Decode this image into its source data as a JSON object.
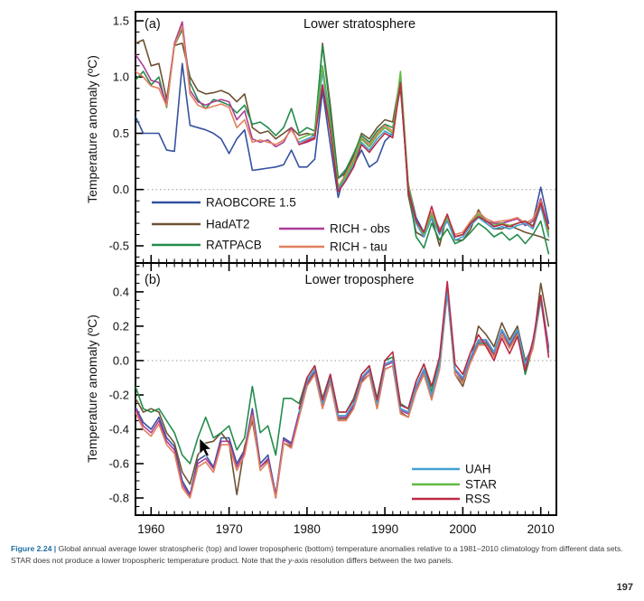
{
  "caption": {
    "label": "Figure 2.24 |",
    "body_pre": "Global annual average lower stratospheric (top) and lower tropospheric (bottom) temperature anomalies relative to a 1981–2010 climatology from different data sets. STAR does not produce a lower tropospheric temperature product. Note that the ",
    "italic": "y",
    "body_post": "-axis resolution differs between the two panels."
  },
  "page_number": "197",
  "chart_data": [
    {
      "type": "line",
      "panel_label": "(a)",
      "title": "Lower stratosphere",
      "ylabel": "Temperature anomaly (ºC)",
      "x_range": [
        1958,
        2012
      ],
      "ylim": [
        -0.653,
        1.58
      ],
      "ytick_values": [
        -0.5,
        0.0,
        0.5,
        1.0,
        1.5
      ],
      "y_minor_step": 0.1,
      "xticks": [
        1960,
        1970,
        1980,
        1990,
        2000,
        2010
      ],
      "x_minor_step": 1,
      "zero_line": true,
      "legend": {
        "columns": [
          [
            {
              "label": "RAOBCORE 1.5",
              "color": "#3552a0"
            },
            {
              "label": "HadAT2",
              "color": "#6e5232"
            },
            {
              "label": "RATPACB",
              "color": "#238c4c"
            }
          ],
          [
            {
              "label": "RICH - obs",
              "color": "#aa3e96"
            },
            {
              "label": "RICH - tau",
              "color": "#e2805e"
            }
          ]
        ]
      },
      "series": [
        {
          "name": "RAOBCORE 1.5",
          "color": "#3552a0",
          "start_year": 1958,
          "values": [
            0.65,
            0.5,
            0.5,
            0.5,
            0.35,
            0.34,
            1.12,
            0.57,
            0.55,
            0.53,
            0.5,
            0.45,
            0.32,
            0.45,
            0.53,
            0.17,
            0.18,
            0.19,
            0.2,
            0.22,
            0.35,
            0.2,
            0.2,
            0.27,
            0.88,
            0.4,
            -0.07,
            0.18,
            0.22,
            0.35,
            0.2,
            0.25,
            0.43,
            0.5,
            0.96,
            0.05,
            -0.25,
            -0.38,
            -0.2,
            -0.35,
            -0.28,
            -0.42,
            -0.4,
            -0.3,
            -0.22,
            -0.28,
            -0.32,
            -0.3,
            -0.28,
            -0.25,
            -0.32,
            -0.28,
            0.02,
            -0.3
          ]
        },
        {
          "name": "HadAT2",
          "color": "#6e5232",
          "start_year": 1958,
          "values": [
            1.3,
            1.33,
            1.1,
            1.12,
            0.8,
            1.28,
            1.3,
            1.0,
            0.88,
            0.85,
            0.86,
            0.88,
            0.85,
            0.78,
            0.85,
            0.55,
            0.5,
            0.52,
            0.45,
            0.5,
            0.55,
            0.48,
            0.5,
            0.48,
            1.3,
            0.75,
            0.1,
            0.15,
            0.3,
            0.5,
            0.45,
            0.55,
            0.62,
            0.6,
            1.0,
            -0.05,
            -0.38,
            -0.42,
            -0.25,
            -0.5,
            -0.22,
            -0.45,
            -0.45,
            -0.35,
            -0.18,
            -0.3,
            -0.35,
            -0.35,
            -0.32,
            -0.35,
            -0.38,
            -0.4,
            -0.42,
            -0.45
          ]
        },
        {
          "name": "RATPACB",
          "color": "#238c4c",
          "start_year": 1958,
          "values": [
            0.97,
            1.05,
            0.93,
            1.0,
            0.73,
            1.28,
            1.42,
            0.95,
            0.8,
            0.72,
            0.8,
            0.78,
            0.75,
            0.68,
            0.75,
            0.58,
            0.6,
            0.55,
            0.48,
            0.55,
            0.72,
            0.5,
            0.55,
            0.52,
            1.28,
            0.7,
            0.1,
            0.18,
            0.32,
            0.48,
            0.42,
            0.52,
            0.58,
            0.55,
            0.9,
            0.02,
            -0.42,
            -0.52,
            -0.3,
            -0.45,
            -0.35,
            -0.48,
            -0.45,
            -0.38,
            -0.3,
            -0.35,
            -0.42,
            -0.38,
            -0.45,
            -0.4,
            -0.48,
            -0.4,
            -0.28,
            -0.57
          ]
        },
        {
          "name": "RICH - obs",
          "color": "#aa3e96",
          "start_year": 1958,
          "values": [
            1.2,
            1.1,
            0.97,
            0.95,
            0.76,
            1.3,
            1.49,
            0.88,
            0.78,
            0.75,
            0.78,
            0.8,
            0.78,
            0.62,
            0.7,
            0.45,
            0.42,
            0.44,
            0.38,
            0.42,
            0.55,
            0.4,
            0.42,
            0.45,
            1.1,
            0.6,
            0.02,
            0.12,
            0.25,
            0.45,
            0.38,
            0.48,
            0.55,
            0.5,
            0.93,
            0.0,
            -0.3,
            -0.42,
            -0.22,
            -0.38,
            -0.25,
            -0.42,
            -0.4,
            -0.3,
            -0.22,
            -0.28,
            -0.3,
            -0.3,
            -0.28,
            -0.26,
            -0.32,
            -0.28,
            -0.08,
            -0.35
          ]
        },
        {
          "name": "RICH - tau",
          "color": "#e2805e",
          "start_year": 1958,
          "values": [
            1.05,
            1.0,
            0.92,
            0.9,
            0.74,
            1.28,
            1.45,
            0.85,
            0.75,
            0.72,
            0.74,
            0.76,
            0.73,
            0.55,
            0.62,
            0.42,
            0.44,
            0.42,
            0.4,
            0.44,
            0.53,
            0.42,
            0.44,
            0.46,
            1.08,
            0.58,
            0.02,
            0.14,
            0.27,
            0.46,
            0.4,
            0.5,
            0.57,
            0.52,
            0.95,
            0.02,
            -0.28,
            -0.4,
            -0.2,
            -0.36,
            -0.24,
            -0.4,
            -0.38,
            -0.28,
            -0.2,
            -0.26,
            -0.29,
            -0.28,
            -0.27,
            -0.25,
            -0.3,
            -0.26,
            -0.1,
            -0.38
          ]
        },
        {
          "name": "UAH",
          "color": "#44a2d4",
          "start_year": 1979,
          "values": [
            0.42,
            0.45,
            0.48,
            1.05,
            0.55,
            0.0,
            0.1,
            0.22,
            0.42,
            0.35,
            0.45,
            0.52,
            0.48,
            1.02,
            0.02,
            -0.3,
            -0.42,
            -0.25,
            -0.4,
            -0.28,
            -0.45,
            -0.42,
            -0.32,
            -0.25,
            -0.3,
            -0.35,
            -0.33,
            -0.35,
            -0.32,
            -0.3,
            -0.35,
            -0.15,
            -0.42
          ]
        },
        {
          "name": "STAR",
          "color": "#63b945",
          "start_year": 1979,
          "values": [
            0.45,
            0.48,
            0.5,
            1.1,
            0.58,
            0.02,
            0.12,
            0.25,
            0.45,
            0.38,
            0.48,
            0.55,
            0.5,
            1.05,
            0.05,
            -0.28,
            -0.4,
            -0.22,
            -0.38,
            -0.25,
            -0.42,
            -0.4,
            -0.3,
            -0.22,
            -0.28,
            -0.32,
            -0.3,
            -0.32,
            -0.3,
            -0.28,
            -0.32,
            -0.12,
            -0.4
          ]
        },
        {
          "name": "RSS",
          "color": "#bd2944",
          "start_year": 1979,
          "values": [
            0.4,
            0.43,
            0.46,
            0.93,
            0.52,
            -0.02,
            0.08,
            0.2,
            0.4,
            0.33,
            0.42,
            0.5,
            0.46,
            0.95,
            0.0,
            -0.28,
            -0.38,
            -0.15,
            -0.38,
            -0.22,
            -0.42,
            -0.4,
            -0.3,
            -0.24,
            -0.28,
            -0.33,
            -0.31,
            -0.33,
            -0.3,
            -0.28,
            -0.33,
            -0.12,
            -0.35
          ]
        }
      ]
    },
    {
      "type": "line",
      "panel_label": "(b)",
      "title": "Lower troposphere",
      "ylabel": "Temperature anomaly (ºC)",
      "x_range": [
        1958,
        2012
      ],
      "ylim": [
        -0.9,
        0.568
      ],
      "ytick_values": [
        -0.8,
        -0.6,
        -0.4,
        -0.2,
        0.0,
        0.2,
        0.4
      ],
      "y_minor_step": 0.05,
      "xticks": [
        1960,
        1970,
        1980,
        1990,
        2000,
        2010
      ],
      "x_minor_step": 1,
      "zero_line": true,
      "legend": {
        "columns": [
          [
            {
              "label": "UAH",
              "color": "#44a2d4"
            },
            {
              "label": "STAR",
              "color": "#63b945"
            },
            {
              "label": "RSS",
              "color": "#bd2944"
            }
          ]
        ]
      },
      "series": [
        {
          "name": "RAOBCORE 1.5",
          "color": "#3552a0",
          "start_year": 1958,
          "values": [
            -0.27,
            -0.36,
            -0.4,
            -0.33,
            -0.45,
            -0.5,
            -0.7,
            -0.78,
            -0.58,
            -0.55,
            -0.62,
            -0.45,
            -0.45,
            -0.6,
            -0.52,
            -0.28,
            -0.6,
            -0.55,
            -0.78,
            -0.45,
            -0.48,
            -0.3,
            -0.12,
            -0.05,
            -0.25,
            -0.1,
            -0.32,
            -0.32,
            -0.25,
            -0.1,
            -0.05,
            -0.25,
            -0.02,
            0.0,
            -0.28,
            -0.3,
            -0.15,
            -0.05,
            -0.2,
            -0.02,
            0.42,
            -0.05,
            -0.1,
            0.02,
            0.12,
            0.12,
            0.05,
            0.18,
            0.1,
            0.18,
            -0.02,
            0.1,
            0.38,
            0.08
          ]
        },
        {
          "name": "HadAT2",
          "color": "#6e5232",
          "start_year": 1958,
          "values": [
            -0.22,
            -0.3,
            -0.28,
            -0.3,
            -0.42,
            -0.48,
            -0.65,
            -0.72,
            -0.55,
            -0.48,
            -0.47,
            -0.42,
            -0.48,
            -0.78,
            -0.5,
            -0.35,
            -0.62,
            -0.58,
            -0.8,
            -0.48,
            -0.5,
            -0.32,
            -0.14,
            -0.07,
            -0.27,
            -0.12,
            -0.34,
            -0.34,
            -0.27,
            -0.12,
            -0.08,
            -0.28,
            -0.05,
            -0.03,
            -0.3,
            -0.33,
            -0.18,
            -0.08,
            -0.22,
            -0.05,
            0.4,
            -0.08,
            -0.15,
            0.0,
            0.2,
            0.15,
            0.08,
            0.22,
            0.12,
            0.2,
            0.0,
            0.08,
            0.45,
            0.2
          ]
        },
        {
          "name": "RATPACB",
          "color": "#238c4c",
          "start_year": 1958,
          "values": [
            -0.15,
            -0.28,
            -0.3,
            -0.28,
            -0.35,
            -0.42,
            -0.55,
            -0.6,
            -0.45,
            -0.33,
            -0.45,
            -0.42,
            -0.38,
            -0.52,
            -0.45,
            -0.15,
            -0.42,
            -0.38,
            -0.55,
            -0.22,
            -0.22,
            -0.25,
            -0.1,
            -0.03,
            -0.22,
            -0.08,
            -0.3,
            -0.3,
            -0.22,
            -0.08,
            -0.03,
            -0.22,
            0.0,
            0.02,
            -0.25,
            -0.28,
            -0.12,
            -0.02,
            -0.18,
            0.0,
            0.42,
            -0.08,
            -0.12,
            0.0,
            0.1,
            0.1,
            0.03,
            0.15,
            0.08,
            0.16,
            -0.08,
            0.08,
            0.36,
            0.05
          ]
        },
        {
          "name": "RICH - obs",
          "color": "#aa3e96",
          "start_year": 1958,
          "values": [
            -0.28,
            -0.38,
            -0.42,
            -0.35,
            -0.47,
            -0.52,
            -0.72,
            -0.79,
            -0.6,
            -0.57,
            -0.63,
            -0.47,
            -0.47,
            -0.62,
            -0.53,
            -0.3,
            -0.62,
            -0.57,
            -0.79,
            -0.46,
            -0.49,
            -0.31,
            -0.13,
            -0.06,
            -0.26,
            -0.11,
            -0.33,
            -0.33,
            -0.26,
            -0.11,
            -0.06,
            -0.26,
            -0.03,
            -0.01,
            -0.29,
            -0.31,
            -0.16,
            -0.06,
            -0.21,
            -0.03,
            0.41,
            -0.06,
            -0.11,
            0.01,
            0.11,
            0.11,
            0.04,
            0.17,
            0.09,
            0.17,
            -0.03,
            0.09,
            0.37,
            0.07
          ]
        },
        {
          "name": "RICH - tau",
          "color": "#e2805e",
          "start_year": 1958,
          "values": [
            -0.3,
            -0.4,
            -0.44,
            -0.37,
            -0.49,
            -0.54,
            -0.74,
            -0.8,
            -0.62,
            -0.59,
            -0.65,
            -0.49,
            -0.49,
            -0.64,
            -0.55,
            -0.32,
            -0.64,
            -0.59,
            -0.8,
            -0.48,
            -0.51,
            -0.33,
            -0.15,
            -0.08,
            -0.28,
            -0.13,
            -0.35,
            -0.35,
            -0.28,
            -0.13,
            -0.08,
            -0.28,
            -0.05,
            -0.03,
            -0.31,
            -0.33,
            -0.18,
            -0.08,
            -0.23,
            -0.05,
            0.39,
            -0.08,
            -0.13,
            -0.01,
            0.09,
            0.09,
            0.02,
            0.15,
            0.07,
            0.15,
            -0.05,
            0.07,
            0.35,
            0.05
          ]
        },
        {
          "name": "UAH",
          "color": "#44a2d4",
          "start_year": 1979,
          "values": [
            -0.3,
            -0.12,
            -0.05,
            -0.25,
            -0.1,
            -0.32,
            -0.32,
            -0.25,
            -0.1,
            -0.05,
            -0.25,
            -0.02,
            0.0,
            -0.28,
            -0.3,
            -0.15,
            -0.05,
            -0.2,
            -0.02,
            0.4,
            -0.05,
            -0.1,
            0.02,
            0.12,
            0.12,
            0.05,
            0.18,
            0.1,
            0.18,
            -0.02,
            0.1,
            0.35,
            0.05
          ]
        },
        {
          "name": "RSS",
          "color": "#bd2944",
          "start_year": 1979,
          "values": [
            -0.28,
            -0.1,
            -0.03,
            -0.23,
            -0.08,
            -0.3,
            -0.3,
            -0.23,
            -0.08,
            -0.03,
            -0.23,
            0.0,
            0.05,
            -0.26,
            -0.28,
            -0.12,
            -0.02,
            -0.15,
            0.02,
            0.46,
            -0.02,
            -0.08,
            0.05,
            0.15,
            0.08,
            0.0,
            0.13,
            0.04,
            0.14,
            -0.06,
            0.12,
            0.38,
            0.02
          ]
        }
      ]
    }
  ]
}
